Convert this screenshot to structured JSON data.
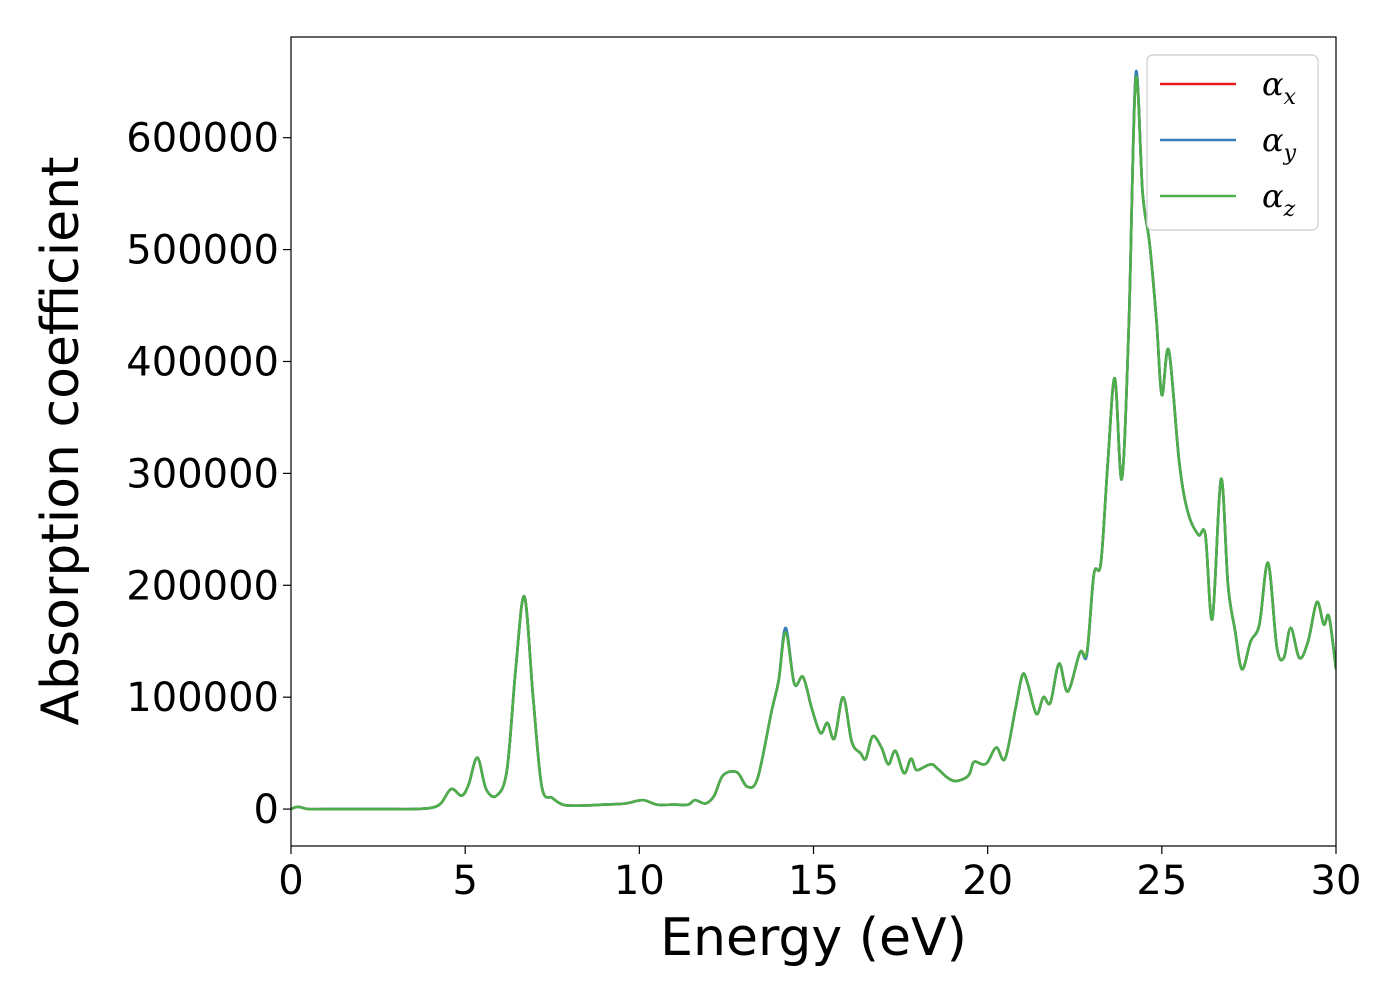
{
  "chart_data": {
    "type": "line",
    "xlabel": "Energy (eV)",
    "ylabel": "Absorption coefficient",
    "xlim": [
      0,
      30
    ],
    "ylim": [
      -33000,
      690000
    ],
    "xticks": [
      0,
      5,
      10,
      15,
      20,
      25,
      30
    ],
    "yticks": [
      0,
      100000,
      200000,
      300000,
      400000,
      500000,
      600000
    ],
    "grid": false,
    "legend_position": "top-right",
    "series": [
      {
        "name": "α_x",
        "symbol": "α",
        "subscript": "x",
        "color": "#e41a1c",
        "x": [
          0,
          0.2,
          0.5,
          1,
          2,
          3,
          3.5,
          4,
          4.3,
          4.6,
          4.9,
          5.1,
          5.35,
          5.6,
          5.9,
          6.2,
          6.45,
          6.7,
          6.95,
          7.2,
          7.5,
          7.8,
          8.2,
          9,
          9.6,
          10.1,
          10.5,
          11,
          11.4,
          11.6,
          11.9,
          12.15,
          12.4,
          12.8,
          13.1,
          13.4,
          13.8,
          14.0,
          14.2,
          14.45,
          14.7,
          14.95,
          15.2,
          15.4,
          15.6,
          15.85,
          16.1,
          16.35,
          16.5,
          16.7,
          16.95,
          17.15,
          17.35,
          17.6,
          17.8,
          17.95,
          18.2,
          18.4,
          18.6,
          18.85,
          19.1,
          19.45,
          19.6,
          19.85,
          20.0,
          20.25,
          20.5,
          20.8,
          21.0,
          21.15,
          21.4,
          21.6,
          21.8,
          22.05,
          22.3,
          22.65,
          22.85,
          23.05,
          23.25,
          23.45,
          23.65,
          23.85,
          24.05,
          24.25,
          24.45,
          24.65,
          24.85,
          25.0,
          25.2,
          25.5,
          25.75,
          26.05,
          26.25,
          26.45,
          26.7,
          26.9,
          27.1,
          27.3,
          27.55,
          27.8,
          28.05,
          28.3,
          28.5,
          28.7,
          28.95,
          29.2,
          29.45,
          29.65,
          29.8,
          30.0
        ],
        "y": [
          0,
          2000,
          0,
          0,
          0,
          0,
          0,
          1000,
          5000,
          18000,
          12000,
          22000,
          46000,
          18000,
          12000,
          35000,
          125000,
          190000,
          100000,
          20000,
          10000,
          4000,
          3000,
          4000,
          5000,
          8000,
          4000,
          4000,
          4000,
          8000,
          5000,
          12000,
          30000,
          33000,
          20000,
          28000,
          88000,
          115000,
          160000,
          112000,
          118000,
          90000,
          68000,
          77000,
          63000,
          100000,
          60000,
          50000,
          45000,
          65000,
          55000,
          40000,
          52000,
          32000,
          45000,
          35000,
          38000,
          40000,
          35000,
          28000,
          25000,
          30000,
          42000,
          40000,
          42000,
          55000,
          45000,
          90000,
          120000,
          112000,
          85000,
          100000,
          95000,
          130000,
          105000,
          140000,
          140000,
          210000,
          220000,
          310000,
          385000,
          295000,
          430000,
          655000,
          550000,
          505000,
          435000,
          370000,
          410000,
          310000,
          265000,
          245000,
          245000,
          170000,
          295000,
          200000,
          160000,
          125000,
          150000,
          165000,
          220000,
          145000,
          135000,
          162000,
          135000,
          150000,
          185000,
          165000,
          172000,
          125000
        ]
      },
      {
        "name": "α_y",
        "symbol": "α",
        "subscript": "y",
        "color": "#377eb8",
        "x": [
          0,
          0.2,
          0.5,
          1,
          2,
          3,
          3.5,
          4,
          4.3,
          4.6,
          4.9,
          5.1,
          5.35,
          5.6,
          5.9,
          6.2,
          6.45,
          6.7,
          6.95,
          7.2,
          7.5,
          7.8,
          8.2,
          9,
          9.6,
          10.1,
          10.5,
          11,
          11.4,
          11.6,
          11.9,
          12.15,
          12.4,
          12.8,
          13.1,
          13.4,
          13.8,
          14.0,
          14.2,
          14.45,
          14.7,
          14.95,
          15.2,
          15.4,
          15.6,
          15.85,
          16.1,
          16.35,
          16.5,
          16.7,
          16.95,
          17.15,
          17.35,
          17.6,
          17.8,
          17.95,
          18.2,
          18.4,
          18.6,
          18.85,
          19.1,
          19.45,
          19.6,
          19.85,
          20.0,
          20.25,
          20.5,
          20.8,
          21.0,
          21.15,
          21.4,
          21.6,
          21.8,
          22.05,
          22.3,
          22.65,
          22.85,
          23.05,
          23.25,
          23.45,
          23.65,
          23.85,
          24.05,
          24.25,
          24.45,
          24.65,
          24.85,
          25.0,
          25.2,
          25.5,
          25.75,
          26.05,
          26.25,
          26.45,
          26.7,
          26.9,
          27.1,
          27.3,
          27.55,
          27.8,
          28.05,
          28.3,
          28.5,
          28.7,
          28.95,
          29.2,
          29.45,
          29.65,
          29.8,
          30.0
        ],
        "y": [
          0,
          2000,
          0,
          0,
          0,
          0,
          0,
          1000,
          5000,
          18000,
          12000,
          22000,
          46000,
          18000,
          12000,
          35000,
          125000,
          190000,
          100000,
          20000,
          10000,
          4000,
          3000,
          4000,
          5000,
          8000,
          4000,
          4000,
          4000,
          8000,
          5000,
          12000,
          30000,
          33000,
          20000,
          28000,
          88000,
          115000,
          162000,
          112000,
          118000,
          90000,
          68000,
          77000,
          63000,
          100000,
          60000,
          50000,
          45000,
          65000,
          55000,
          40000,
          52000,
          32000,
          45000,
          35000,
          38000,
          40000,
          35000,
          28000,
          25000,
          30000,
          42000,
          40000,
          42000,
          55000,
          45000,
          90000,
          120000,
          112000,
          85000,
          100000,
          95000,
          130000,
          105000,
          140000,
          138000,
          210000,
          220000,
          310000,
          385000,
          295000,
          430000,
          657000,
          550000,
          505000,
          435000,
          370000,
          410000,
          310000,
          265000,
          245000,
          245000,
          170000,
          295000,
          200000,
          160000,
          125000,
          150000,
          165000,
          220000,
          145000,
          135000,
          162000,
          135000,
          150000,
          185000,
          165000,
          172000,
          125000
        ]
      },
      {
        "name": "α_z",
        "symbol": "α",
        "subscript": "z",
        "color": "#4daf4a",
        "x": [
          0,
          0.2,
          0.5,
          1,
          2,
          3,
          3.5,
          4,
          4.3,
          4.6,
          4.9,
          5.1,
          5.35,
          5.6,
          5.9,
          6.2,
          6.45,
          6.7,
          6.95,
          7.2,
          7.5,
          7.8,
          8.2,
          9,
          9.6,
          10.1,
          10.5,
          11,
          11.4,
          11.6,
          11.9,
          12.15,
          12.4,
          12.8,
          13.1,
          13.4,
          13.8,
          14.0,
          14.2,
          14.45,
          14.7,
          14.95,
          15.2,
          15.4,
          15.6,
          15.85,
          16.1,
          16.35,
          16.5,
          16.7,
          16.95,
          17.15,
          17.35,
          17.6,
          17.8,
          17.95,
          18.2,
          18.4,
          18.6,
          18.85,
          19.1,
          19.45,
          19.6,
          19.85,
          20.0,
          20.25,
          20.5,
          20.8,
          21.0,
          21.15,
          21.4,
          21.6,
          21.8,
          22.05,
          22.3,
          22.65,
          22.85,
          23.05,
          23.25,
          23.45,
          23.65,
          23.85,
          24.05,
          24.25,
          24.45,
          24.65,
          24.85,
          25.0,
          25.2,
          25.5,
          25.75,
          26.05,
          26.25,
          26.45,
          26.7,
          26.9,
          27.1,
          27.3,
          27.55,
          27.8,
          28.05,
          28.3,
          28.5,
          28.7,
          28.95,
          29.2,
          29.45,
          29.65,
          29.8,
          30.0
        ],
        "y": [
          0,
          2000,
          0,
          0,
          0,
          0,
          0,
          1000,
          5000,
          18000,
          12000,
          22000,
          46000,
          18000,
          12000,
          35000,
          125000,
          190000,
          100000,
          20000,
          10000,
          4000,
          3000,
          4000,
          5000,
          8000,
          4000,
          4000,
          4000,
          8000,
          5000,
          12000,
          30000,
          33000,
          20000,
          28000,
          88000,
          115000,
          158000,
          112000,
          118000,
          90000,
          68000,
          77000,
          63000,
          100000,
          60000,
          50000,
          45000,
          65000,
          55000,
          40000,
          52000,
          32000,
          45000,
          35000,
          38000,
          40000,
          35000,
          28000,
          25000,
          30000,
          42000,
          40000,
          42000,
          55000,
          45000,
          90000,
          120000,
          112000,
          85000,
          100000,
          95000,
          130000,
          105000,
          140000,
          140000,
          210000,
          220000,
          310000,
          385000,
          295000,
          430000,
          652000,
          550000,
          505000,
          435000,
          370000,
          410000,
          310000,
          265000,
          245000,
          245000,
          170000,
          295000,
          200000,
          160000,
          125000,
          150000,
          165000,
          220000,
          145000,
          135000,
          162000,
          135000,
          150000,
          185000,
          165000,
          172000,
          125000
        ]
      }
    ]
  }
}
